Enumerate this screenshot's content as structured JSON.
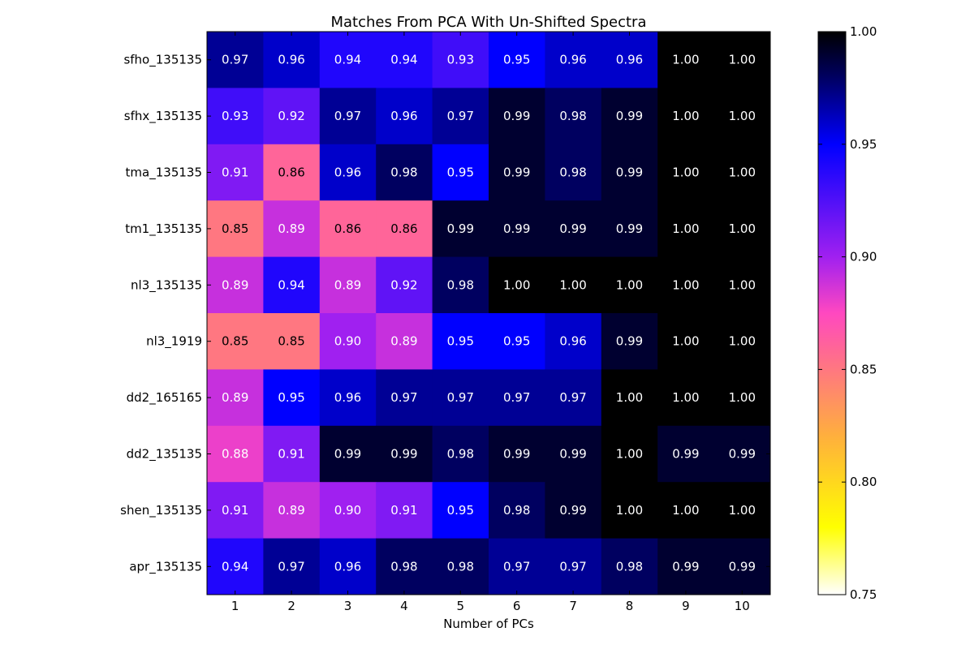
{
  "chart_data": {
    "type": "heatmap",
    "title": "Matches From PCA With Un-Shifted Spectra",
    "xlabel": "Number of PCs",
    "ylabel": "",
    "x_categories": [
      "1",
      "2",
      "3",
      "4",
      "5",
      "6",
      "7",
      "8",
      "9",
      "10"
    ],
    "y_categories": [
      "sfho_135135",
      "sfhx_135135",
      "tma_135135",
      "tm1_135135",
      "nl3_135135",
      "nl3_1919",
      "dd2_165165",
      "dd2_135135",
      "shen_135135",
      "apr_135135"
    ],
    "values": [
      [
        0.97,
        0.96,
        0.94,
        0.94,
        0.93,
        0.95,
        0.96,
        0.96,
        1.0,
        1.0
      ],
      [
        0.93,
        0.92,
        0.97,
        0.96,
        0.97,
        0.99,
        0.98,
        0.99,
        1.0,
        1.0
      ],
      [
        0.91,
        0.86,
        0.96,
        0.98,
        0.95,
        0.99,
        0.98,
        0.99,
        1.0,
        1.0
      ],
      [
        0.85,
        0.89,
        0.86,
        0.86,
        0.99,
        0.99,
        0.99,
        0.99,
        1.0,
        1.0
      ],
      [
        0.89,
        0.94,
        0.89,
        0.92,
        0.98,
        1.0,
        1.0,
        1.0,
        1.0,
        1.0
      ],
      [
        0.85,
        0.85,
        0.9,
        0.89,
        0.95,
        0.95,
        0.96,
        0.99,
        1.0,
        1.0
      ],
      [
        0.89,
        0.95,
        0.96,
        0.97,
        0.97,
        0.97,
        0.97,
        1.0,
        1.0,
        1.0
      ],
      [
        0.88,
        0.91,
        0.99,
        0.99,
        0.98,
        0.99,
        0.99,
        1.0,
        0.99,
        0.99
      ],
      [
        0.91,
        0.89,
        0.9,
        0.91,
        0.95,
        0.98,
        0.99,
        1.0,
        1.0,
        1.0
      ],
      [
        0.94,
        0.97,
        0.96,
        0.98,
        0.98,
        0.97,
        0.97,
        0.98,
        0.99,
        0.99
      ]
    ],
    "value_format_decimals": 2,
    "colorbar": {
      "range": [
        0.75,
        1.0
      ],
      "ticks": [
        "0.75",
        "0.80",
        "0.85",
        "0.90",
        "0.95",
        "1.00"
      ],
      "colormap": "gnuplot2_r"
    },
    "grid": false,
    "legend": "colorbar-right"
  }
}
